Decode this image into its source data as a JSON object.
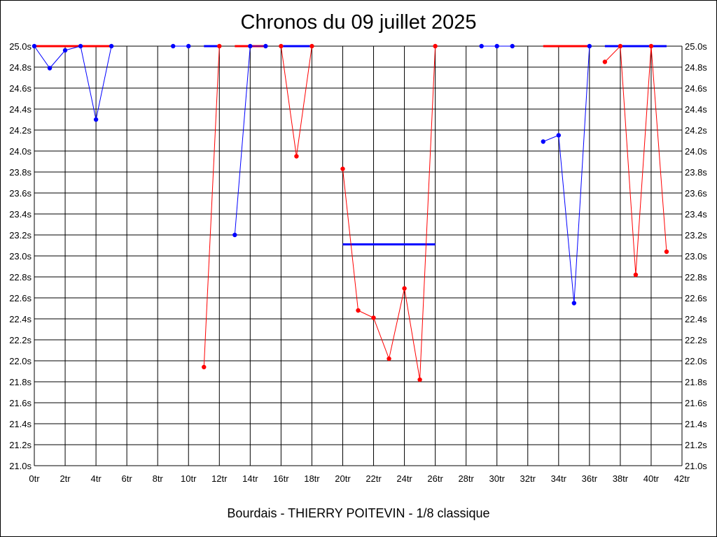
{
  "chart_data": {
    "type": "line",
    "title": "Chronos du 09 juillet 2025",
    "footer": "Bourdais - THIERRY POITEVIN - 1/8 classique",
    "xlim": [
      0,
      42
    ],
    "ylim": [
      21.0,
      25.0
    ],
    "x_ticks": [
      0,
      2,
      4,
      6,
      8,
      10,
      12,
      14,
      16,
      18,
      20,
      22,
      24,
      26,
      28,
      30,
      32,
      34,
      36,
      38,
      40,
      42
    ],
    "x_tick_labels": [
      "0tr",
      "2tr",
      "4tr",
      "6tr",
      "8tr",
      "10tr",
      "12tr",
      "14tr",
      "16tr",
      "18tr",
      "20tr",
      "22tr",
      "24tr",
      "26tr",
      "28tr",
      "30tr",
      "32tr",
      "34tr",
      "36tr",
      "38tr",
      "40tr",
      "42tr"
    ],
    "y_ticks": [
      21.0,
      21.2,
      21.4,
      21.6,
      21.8,
      22.0,
      22.2,
      22.4,
      22.6,
      22.8,
      23.0,
      23.2,
      23.4,
      23.6,
      23.8,
      24.0,
      24.2,
      24.4,
      24.6,
      24.8,
      25.0
    ],
    "y_tick_labels": [
      "21.0s",
      "21.2s",
      "21.4s",
      "21.6s",
      "21.8s",
      "22.0s",
      "22.2s",
      "22.4s",
      "22.6s",
      "22.8s",
      "23.0s",
      "23.2s",
      "23.4s",
      "23.6s",
      "23.8s",
      "24.0s",
      "24.2s",
      "24.4s",
      "24.6s",
      "24.8s",
      "25.0s"
    ],
    "grid": true,
    "colors": {
      "red": "#ff0000",
      "blue": "#0000ff"
    },
    "series": [
      {
        "color": "blue",
        "points": [
          [
            0,
            25.0
          ],
          [
            1,
            24.79
          ],
          [
            2,
            24.96
          ],
          [
            3,
            25.0
          ],
          [
            4,
            24.3
          ],
          [
            5,
            25.0
          ]
        ]
      },
      {
        "color": "blue",
        "points": [
          [
            9,
            25.0
          ],
          [
            10,
            25.0
          ]
        ]
      },
      {
        "color": "red",
        "points": [
          [
            11,
            21.94
          ],
          [
            12,
            25.0
          ]
        ]
      },
      {
        "color": "blue",
        "points": [
          [
            13,
            23.2
          ],
          [
            14,
            25.0
          ],
          [
            15,
            25.0
          ]
        ]
      },
      {
        "color": "red",
        "points": [
          [
            16,
            25.0
          ],
          [
            17,
            23.95
          ],
          [
            18,
            25.0
          ]
        ]
      },
      {
        "color": "red",
        "points": [
          [
            20,
            23.83
          ],
          [
            21,
            22.48
          ],
          [
            22,
            22.41
          ],
          [
            23,
            22.02
          ],
          [
            24,
            22.69
          ],
          [
            25,
            21.82
          ],
          [
            26,
            25.0
          ]
        ]
      },
      {
        "color": "blue",
        "points": [
          [
            29,
            25.0
          ],
          [
            30,
            25.0
          ],
          [
            31,
            25.0
          ]
        ]
      },
      {
        "color": "blue",
        "points": [
          [
            33,
            24.09
          ],
          [
            34,
            24.15
          ],
          [
            35,
            22.55
          ],
          [
            36,
            25.0
          ]
        ]
      },
      {
        "color": "red",
        "points": [
          [
            37,
            24.85
          ],
          [
            38,
            25.0
          ],
          [
            39,
            22.82
          ],
          [
            40,
            25.0
          ],
          [
            41,
            23.04
          ]
        ]
      }
    ],
    "reference_lines": [
      {
        "color": "red",
        "x": [
          0,
          5
        ],
        "y": 25.0
      },
      {
        "color": "blue",
        "x": [
          11,
          12
        ],
        "y": 25.0
      },
      {
        "color": "red",
        "x": [
          13,
          15
        ],
        "y": 25.0
      },
      {
        "color": "blue",
        "x": [
          16,
          18
        ],
        "y": 25.0
      },
      {
        "color": "blue",
        "x": [
          20,
          26
        ],
        "y": 23.11
      },
      {
        "color": "red",
        "x": [
          33,
          36
        ],
        "y": 25.0
      },
      {
        "color": "blue",
        "x": [
          37,
          41
        ],
        "y": 25.0
      }
    ]
  }
}
